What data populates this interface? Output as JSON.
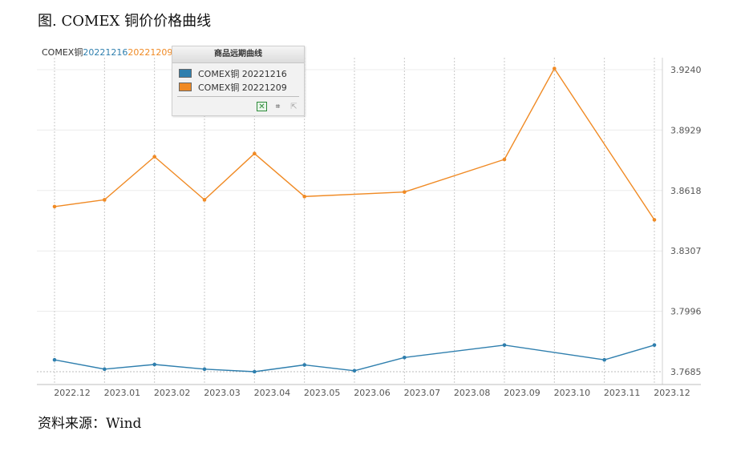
{
  "figure_title": "图. COMEX 铜价价格曲线",
  "header": {
    "prefix": "COMEX铜",
    "series1_code": "20221216",
    "series2_code": "20221209"
  },
  "legend": {
    "title": "商品远期曲线",
    "items": [
      {
        "label": "COMEX铜 20221216",
        "color": "#2f7fae"
      },
      {
        "label": "COMEX铜 20221209",
        "color": "#f08a24"
      }
    ],
    "tools": [
      "excel-export-icon",
      "crop-icon",
      "back-icon"
    ]
  },
  "source": "资料来源：Wind",
  "chart_data": {
    "type": "line",
    "categories": [
      "2022.12",
      "2023.01",
      "2023.02",
      "2023.03",
      "2023.04",
      "2023.05",
      "2023.06",
      "2023.07",
      "2023.08",
      "2023.09",
      "2023.10",
      "2023.11",
      "2023.12"
    ],
    "y_ticks": [
      "3.9240",
      "3.8929",
      "3.8618",
      "3.8307",
      "3.7996",
      "3.7685"
    ],
    "ylim": [
      3.7685,
      3.924
    ],
    "y_axis_position": "right",
    "grid": true,
    "series": [
      {
        "name": "COMEX铜 20221216",
        "color": "#2f7fae",
        "points": [
          {
            "x": 0.0,
            "y": 3.7746
          },
          {
            "x": 1.0,
            "y": 3.7698
          },
          {
            "x": 2.0,
            "y": 3.7722
          },
          {
            "x": 3.0,
            "y": 3.7698
          },
          {
            "x": 4.0,
            "y": 3.7685
          },
          {
            "x": 5.0,
            "y": 3.772
          },
          {
            "x": 6.0,
            "y": 3.769
          },
          {
            "x": 7.0,
            "y": 3.7758
          },
          {
            "x": 9.0,
            "y": 3.7822
          },
          {
            "x": 11.0,
            "y": 3.7746
          },
          {
            "x": 12.0,
            "y": 3.7822
          }
        ]
      },
      {
        "name": "COMEX铜 20221209",
        "color": "#f08a24",
        "points": [
          {
            "x": 0.0,
            "y": 3.8535
          },
          {
            "x": 1.0,
            "y": 3.857
          },
          {
            "x": 2.0,
            "y": 3.8792
          },
          {
            "x": 3.0,
            "y": 3.857
          },
          {
            "x": 4.0,
            "y": 3.8808
          },
          {
            "x": 5.0,
            "y": 3.8587
          },
          {
            "x": 7.0,
            "y": 3.861
          },
          {
            "x": 9.0,
            "y": 3.8778
          },
          {
            "x": 10.0,
            "y": 3.9246
          },
          {
            "x": 12.0,
            "y": 3.8467
          }
        ]
      }
    ]
  }
}
